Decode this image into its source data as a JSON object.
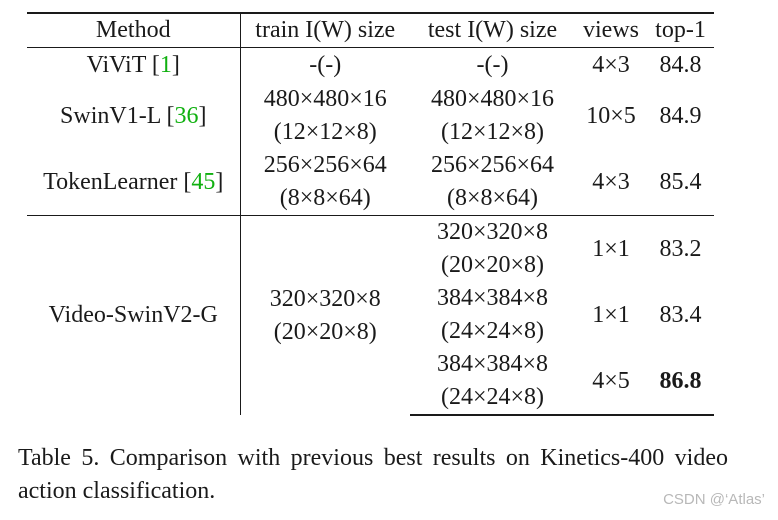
{
  "table": {
    "headers": [
      "Method",
      "train I(W) size",
      "test I(W) size",
      "views",
      "top-1"
    ],
    "rows": [
      {
        "method": "ViViT",
        "cite": "1",
        "train": "-(-)",
        "test": "-(-)",
        "views": "4×3",
        "top1": "84.8"
      },
      {
        "method": "SwinV1-L",
        "cite": "36",
        "train_a": "480×480×16",
        "train_b": "(12×12×8)",
        "test_a": "480×480×16",
        "test_b": "(12×12×8)",
        "views": "10×5",
        "top1": "84.9"
      },
      {
        "method": "TokenLearner",
        "cite": "45",
        "train_a": "256×256×64",
        "train_b": "(8×8×64)",
        "test_a": "256×256×64",
        "test_b": "(8×8×64)",
        "views": "4×3",
        "top1": "85.4"
      }
    ],
    "group": {
      "method": "Video-SwinV2-G",
      "train_a": "320×320×8",
      "train_b": "(20×20×8)",
      "entries": [
        {
          "test_a": "320×320×8",
          "test_b": "(20×20×8)",
          "views": "1×1",
          "top1": "83.2"
        },
        {
          "test_a": "384×384×8",
          "test_b": "(24×24×8)",
          "views": "1×1",
          "top1": "83.4"
        },
        {
          "test_a": "384×384×8",
          "test_b": "(24×24×8)",
          "views": "4×5",
          "top1": "86.8"
        }
      ]
    }
  },
  "caption": "Table 5.  Comparison with previous best results on Kinetics-400 video action classification.",
  "watermark": "CSDN @‘Atlas’"
}
